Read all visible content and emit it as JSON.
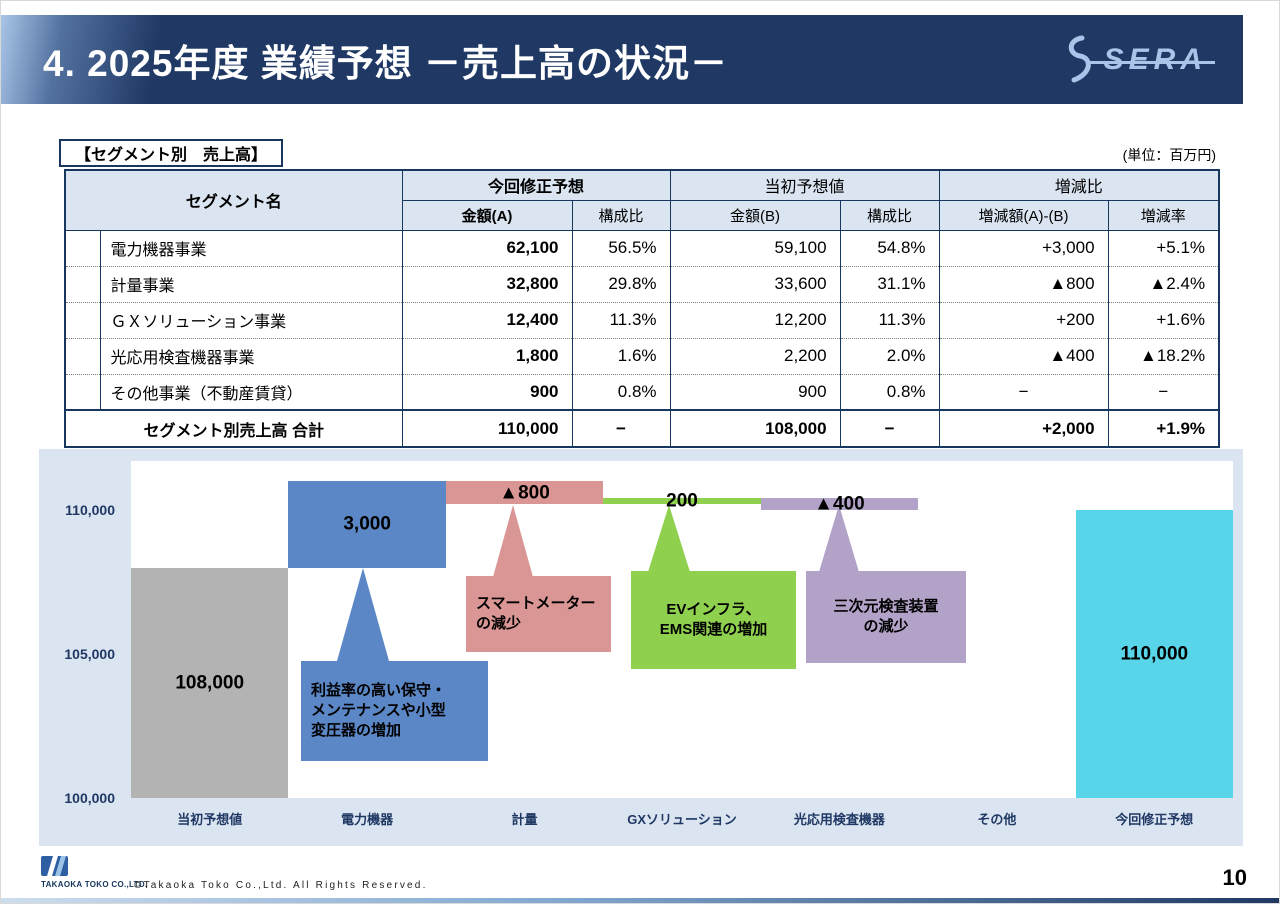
{
  "header": {
    "title": "4. 2025年度 業績予想 －売上高の状況－",
    "logo_text": "SERA"
  },
  "table_section": {
    "caption": "【セグメント別　売上高】",
    "unit_note": "(単位：百万円)",
    "headers": {
      "segment": "セグメント名",
      "group_revised": "今回修正予想",
      "group_initial": "当初予想値",
      "group_change": "増減比",
      "amount_a": "金額(A)",
      "ratio_a": "構成比",
      "amount_b": "金額(B)",
      "ratio_b": "構成比",
      "change_amount": "増減額(A)-(B)",
      "change_rate": "増減率"
    },
    "rows": [
      [
        "電力機器事業",
        "62,100",
        "56.5%",
        "59,100",
        "54.8%",
        "+3,000",
        "+5.1%"
      ],
      [
        "計量事業",
        "32,800",
        "29.8%",
        "33,600",
        "31.1%",
        "▲800",
        "▲2.4%"
      ],
      [
        "ＧＸソリューション事業",
        "12,400",
        "11.3%",
        "12,200",
        "11.3%",
        "+200",
        "+1.6%"
      ],
      [
        "光応用検査機器事業",
        "1,800",
        "1.6%",
        "2,200",
        "2.0%",
        "▲400",
        "▲18.2%"
      ],
      [
        "その他事業（不動産賃貸）",
        "900",
        "0.8%",
        "900",
        "0.8%",
        "−",
        "−"
      ]
    ],
    "total": [
      "セグメント別売上高 合計",
      "110,000",
      "−",
      "108,000",
      "−",
      "+2,000",
      "+1.9%"
    ]
  },
  "chart_data": {
    "type": "bar",
    "subtype": "waterfall",
    "title": "",
    "xlabel": "",
    "ylabel": "",
    "ylim": [
      100000,
      111700
    ],
    "grid": false,
    "legend_position": "none",
    "categories": [
      "当初予想値",
      "電力機器",
      "計量",
      "GXソリューション",
      "光応用検査機器",
      "その他",
      "今回修正予想"
    ],
    "bars": [
      {
        "category": "当初予想値",
        "from": 100000,
        "to": 108000,
        "label": "108,000",
        "color": "#b3b3b3"
      },
      {
        "category": "電力機器",
        "from": 108000,
        "to": 111000,
        "label": "3,000",
        "color": "#5b87c6"
      },
      {
        "category": "計量",
        "from": 111000,
        "to": 110200,
        "label": "▲800",
        "color": "#d99694"
      },
      {
        "category": "GXソリューション",
        "from": 110200,
        "to": 110400,
        "label": "200",
        "color": "#8fd14f"
      },
      {
        "category": "光応用検査機器",
        "from": 110400,
        "to": 110000,
        "label": "▲400",
        "color": "#b3a2c7"
      },
      {
        "category": "その他",
        "from": 110000,
        "to": 110000,
        "label": "",
        "color": "#d9d9d9"
      },
      {
        "category": "今回修正予想",
        "from": 100000,
        "to": 110000,
        "label": "110,000",
        "color": "#58d5e8"
      }
    ],
    "yticks": [
      {
        "label": "110,000",
        "value": 110000
      },
      {
        "label": "105,000",
        "value": 105000
      },
      {
        "label": "100,000",
        "value": 100000
      }
    ],
    "callouts": [
      {
        "id": "power-devices",
        "text": "利益率の高い保守・\nメンテナンスや小型\n変圧器の増加",
        "color": "#5b87c6"
      },
      {
        "id": "metering",
        "text": "スマートメーター\nの減少",
        "color": "#d99694"
      },
      {
        "id": "gx-solution",
        "text": "EVインフラ、\nEMS関連の増加",
        "color": "#8fd14f"
      },
      {
        "id": "optical-inspection",
        "text": "三次元検査装置\nの減少",
        "color": "#b3a2c7"
      }
    ]
  },
  "footer": {
    "company": "TAKAOKA TOKO CO.,LTD.",
    "copyright": "©Takaoka Toko Co.,Ltd. All Rights Reserved.",
    "page_number": "10"
  }
}
